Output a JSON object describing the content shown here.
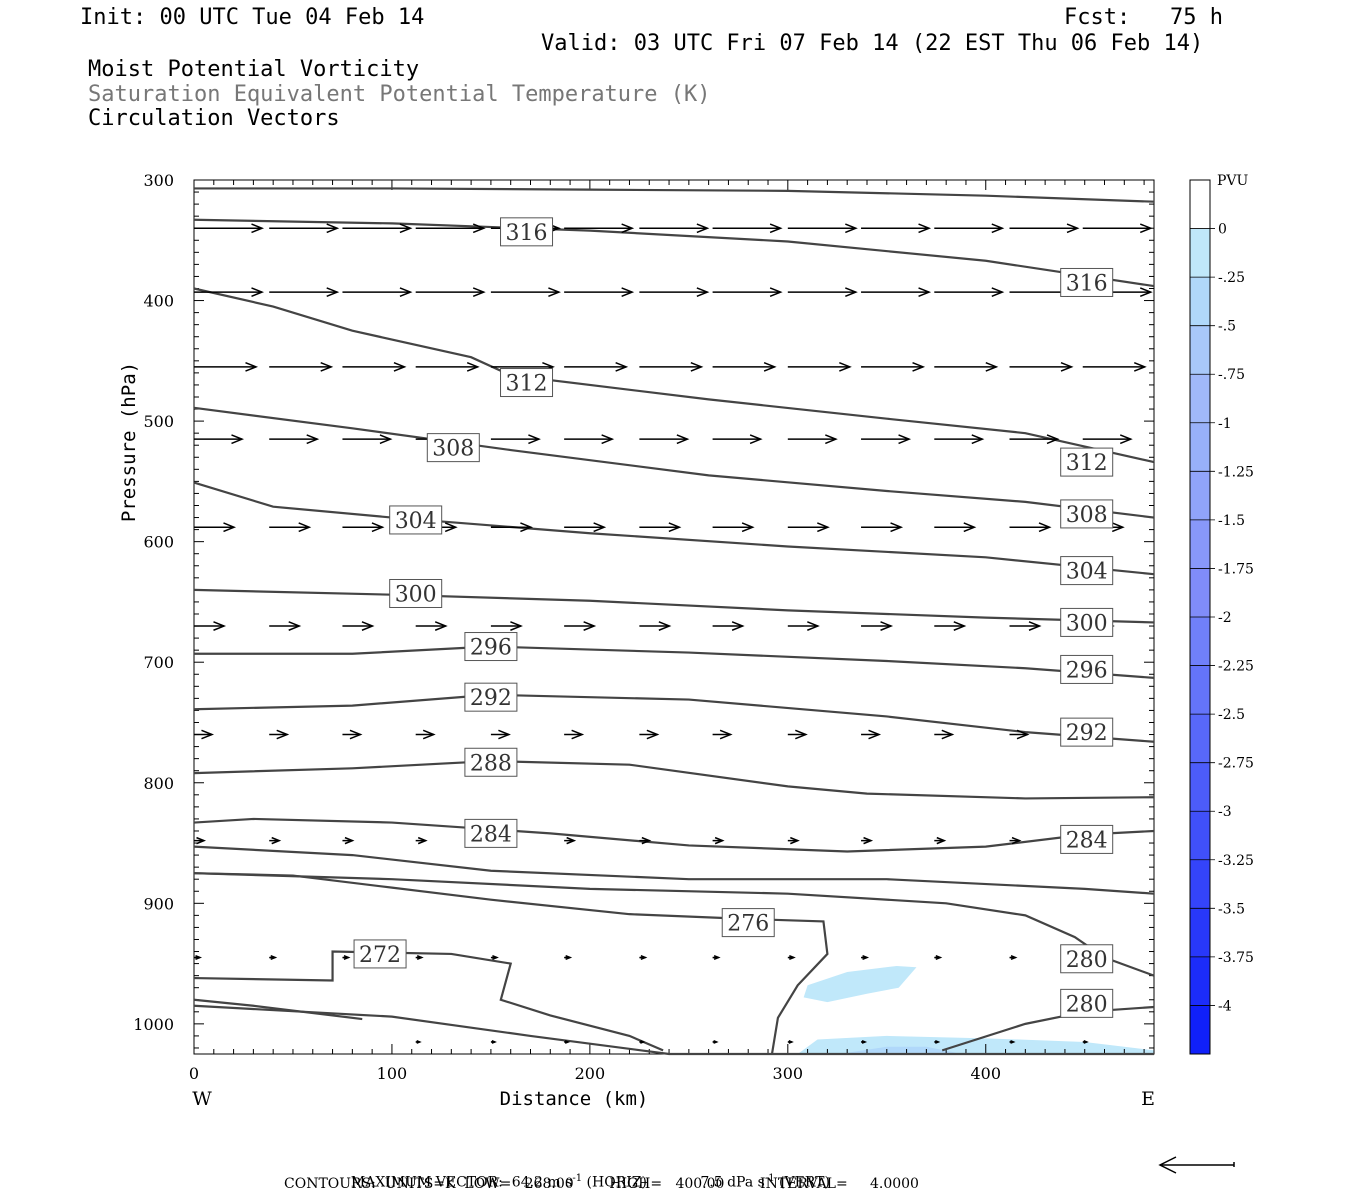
{
  "header": {
    "init": "Init: 00 UTC Tue 04 Feb 14",
    "fcst": "Fcst:   75 h",
    "valid": "Valid: 03 UTC Fri 07 Feb 14 (22 EST Thu 06 Feb 14)",
    "line1": "Moist Potential Vorticity",
    "line2": "Saturation Equivalent Potential Temperature (K)",
    "line3": "Circulation Vectors"
  },
  "footer": {
    "maxvec_label": "MAXIMUM VECTOR:",
    "maxvec_horiz": "64.2 m s",
    "horiz_tag": "(HORIZ)",
    "maxvec_vert": "7.5 dPa s",
    "vert_tag": "(VERT)",
    "exp": "-1",
    "contours": "CONTOURS:  UNITS=K  LOW=   268.00        HIGH=   400.00        INTERVAL=     4.0000"
  },
  "chart_data": {
    "type": "contour",
    "xlabel": "Distance (km)",
    "ylabel": "Pressure (hPa)",
    "xlim": [
      0,
      485
    ],
    "ylim": [
      300,
      1025
    ],
    "x_ticks": [
      0,
      100,
      200,
      300,
      400
    ],
    "y_ticks": [
      300,
      400,
      500,
      600,
      700,
      800,
      900,
      1000
    ],
    "x_left_label": "W",
    "x_right_label": "E",
    "colorbar": {
      "title": "PVU",
      "labels": [
        "0",
        "-.25",
        "-.5",
        "-.75",
        "-1",
        "-1.25",
        "-1.5",
        "-1.75",
        "-2",
        "-2.25",
        "-2.5",
        "-2.75",
        "-3",
        "-3.25",
        "-3.5",
        "-3.75",
        "-4"
      ],
      "colors": [
        "#ffffff",
        "#c0e8fa",
        "#b0d8fa",
        "#a8c8fa",
        "#a0b8fa",
        "#98b0fa",
        "#90a4fa",
        "#8898fa",
        "#808cfa",
        "#7080fa",
        "#6474fa",
        "#5868fa",
        "#4c5cfa",
        "#4050fa",
        "#3444fa",
        "#2838fa",
        "#1c2cfa",
        "#1020fa"
      ]
    },
    "contours": [
      {
        "label": "",
        "points": [
          [
            0,
            307
          ],
          [
            100,
            307
          ],
          [
            200,
            308
          ],
          [
            300,
            309
          ],
          [
            400,
            313
          ],
          [
            485,
            318
          ]
        ]
      },
      {
        "label": "316",
        "points": [
          [
            0,
            333
          ],
          [
            100,
            336
          ],
          [
            200,
            342
          ],
          [
            300,
            351
          ],
          [
            400,
            367
          ],
          [
            485,
            388
          ]
        ],
        "label_at": [
          0,
          [
            168,
            343
          ]
        ],
        "label_at2": [
          [
            451,
            385
          ]
        ]
      },
      {
        "label": "312",
        "points": [
          [
            0,
            390
          ],
          [
            40,
            405
          ],
          [
            80,
            425
          ],
          [
            140,
            447
          ],
          [
            160,
            462
          ],
          [
            260,
            482
          ],
          [
            350,
            498
          ],
          [
            420,
            510
          ],
          [
            485,
            534
          ]
        ],
        "label_at": [
          [
            168,
            468
          ],
          [
            451,
            534
          ]
        ]
      },
      {
        "label": "308",
        "points": [
          [
            0,
            489
          ],
          [
            80,
            506
          ],
          [
            160,
            524
          ],
          [
            260,
            545
          ],
          [
            350,
            558
          ],
          [
            420,
            567
          ],
          [
            485,
            580
          ]
        ],
        "label_at": [
          [
            131,
            522
          ],
          [
            451,
            577
          ]
        ]
      },
      {
        "label": "304",
        "points": [
          [
            0,
            551
          ],
          [
            40,
            571
          ],
          [
            100,
            580
          ],
          [
            200,
            593
          ],
          [
            300,
            604
          ],
          [
            400,
            613
          ],
          [
            485,
            627
          ]
        ],
        "label_at": [
          [
            112,
            582
          ],
          [
            451,
            624
          ]
        ]
      },
      {
        "label": "300",
        "points": [
          [
            0,
            640
          ],
          [
            100,
            644
          ],
          [
            200,
            649
          ],
          [
            300,
            657
          ],
          [
            400,
            663
          ],
          [
            485,
            667
          ]
        ],
        "label_at": [
          [
            112,
            643
          ],
          [
            451,
            667
          ]
        ]
      },
      {
        "label": "296",
        "points": [
          [
            0,
            693
          ],
          [
            80,
            693
          ],
          [
            150,
            687
          ],
          [
            250,
            692
          ],
          [
            350,
            699
          ],
          [
            420,
            705
          ],
          [
            485,
            713
          ]
        ],
        "label_at": [
          [
            150,
            687
          ],
          [
            451,
            706
          ]
        ]
      },
      {
        "label": "292",
        "points": [
          [
            0,
            739
          ],
          [
            80,
            736
          ],
          [
            150,
            727
          ],
          [
            250,
            731
          ],
          [
            350,
            745
          ],
          [
            420,
            758
          ],
          [
            485,
            766
          ]
        ],
        "label_at": [
          [
            150,
            729
          ],
          [
            451,
            758
          ]
        ]
      },
      {
        "label": "288",
        "points": [
          [
            0,
            792
          ],
          [
            80,
            788
          ],
          [
            150,
            782
          ],
          [
            220,
            785
          ],
          [
            300,
            803
          ],
          [
            340,
            809
          ],
          [
            420,
            813
          ],
          [
            485,
            812
          ]
        ],
        "label_at": [
          [
            150,
            783
          ]
        ]
      },
      {
        "label": "284",
        "points": [
          [
            0,
            833
          ],
          [
            30,
            830
          ],
          [
            100,
            833
          ],
          [
            180,
            842
          ],
          [
            250,
            852
          ],
          [
            330,
            857
          ],
          [
            400,
            853
          ],
          [
            450,
            843
          ],
          [
            485,
            840
          ]
        ],
        "label_at": [
          [
            150,
            842
          ],
          [
            451,
            847
          ]
        ]
      },
      {
        "label": "",
        "points": [
          [
            0,
            853
          ],
          [
            80,
            860
          ],
          [
            150,
            873
          ],
          [
            250,
            880
          ],
          [
            350,
            880
          ],
          [
            450,
            888
          ],
          [
            485,
            892
          ]
        ]
      },
      {
        "label": "276",
        "points": [
          [
            0,
            875
          ],
          [
            50,
            877
          ],
          [
            100,
            887
          ],
          [
            150,
            897
          ],
          [
            220,
            909
          ],
          [
            280,
            913
          ],
          [
            318,
            915
          ],
          [
            320,
            942
          ],
          [
            305,
            968
          ],
          [
            295,
            995
          ],
          [
            292,
            1025
          ]
        ],
        "label_at": [
          [
            280,
            916
          ]
        ]
      },
      {
        "label": "280",
        "points": [
          [
            0,
            875
          ],
          [
            100,
            880
          ],
          [
            200,
            888
          ],
          [
            300,
            892
          ],
          [
            380,
            900
          ],
          [
            420,
            910
          ],
          [
            445,
            928
          ],
          [
            460,
            945
          ],
          [
            485,
            960
          ]
        ],
        "label_at": [
          [
            451,
            946
          ]
        ]
      },
      {
        "label": "272",
        "points": [
          [
            0,
            962
          ],
          [
            70,
            964
          ],
          [
            70,
            940
          ],
          [
            130,
            942
          ],
          [
            160,
            950
          ],
          [
            155,
            980
          ],
          [
            180,
            993
          ],
          [
            220,
            1010
          ],
          [
            237,
            1022
          ]
        ],
        "label_at": [
          [
            94,
            942
          ]
        ]
      },
      {
        "label": "280",
        "points": [
          [
            378,
            1022
          ],
          [
            420,
            1000
          ],
          [
            450,
            990
          ],
          [
            485,
            986
          ]
        ],
        "label_at": [
          [
            451,
            983
          ]
        ]
      },
      {
        "label": "",
        "points": [
          [
            0,
            980
          ],
          [
            30,
            985
          ],
          [
            85,
            996
          ]
        ]
      },
      {
        "label": "",
        "points": [
          [
            0,
            985
          ],
          [
            100,
            994
          ],
          [
            170,
            1010
          ],
          [
            240,
            1025
          ],
          [
            485,
            1025
          ]
        ]
      }
    ],
    "shaded": [
      {
        "level": "-0.25",
        "points": [
          [
            310,
            968
          ],
          [
            330,
            957
          ],
          [
            355,
            952
          ],
          [
            365,
            953
          ],
          [
            356,
            970
          ],
          [
            340,
            975
          ],
          [
            320,
            982
          ],
          [
            308,
            978
          ]
        ]
      },
      {
        "level": "-0.25",
        "points": [
          [
            305,
            1025
          ],
          [
            315,
            1013
          ],
          [
            350,
            1010
          ],
          [
            400,
            1012
          ],
          [
            450,
            1015
          ],
          [
            485,
            1022
          ],
          [
            485,
            1025
          ]
        ]
      },
      {
        "level": "-0.5",
        "points": [
          [
            330,
            1024
          ],
          [
            350,
            1019
          ],
          [
            370,
            1019
          ],
          [
            385,
            1024
          ]
        ]
      }
    ],
    "vector_rows": [
      {
        "p": 340,
        "x": [
          0,
          38,
          75,
          112,
          150,
          187,
          225,
          262,
          300,
          337,
          374,
          412,
          449
        ],
        "len": 34
      },
      {
        "p": 393,
        "x": [
          0,
          38,
          75,
          112,
          150,
          187,
          225,
          262,
          300,
          337,
          374,
          412,
          449
        ],
        "len": 34
      },
      {
        "p": 455,
        "x": [
          0,
          38,
          75,
          112,
          150,
          187,
          225,
          262,
          300,
          337,
          374,
          412,
          449
        ],
        "len": 31
      },
      {
        "p": 515,
        "x": [
          0,
          38,
          75,
          112,
          150,
          187,
          225,
          262,
          300,
          337,
          374,
          412,
          449
        ],
        "len": 24
      },
      {
        "p": 588,
        "x": [
          0,
          38,
          75,
          112,
          150,
          187,
          225,
          262,
          300,
          337,
          374,
          412,
          449
        ],
        "len": 20
      },
      {
        "p": 670,
        "x": [
          0,
          38,
          75,
          112,
          150,
          187,
          225,
          262,
          300,
          337,
          374,
          412,
          449
        ],
        "len": 15
      },
      {
        "p": 760,
        "x": [
          0,
          38,
          75,
          112,
          150,
          187,
          225,
          262,
          300,
          337,
          374,
          412,
          449
        ],
        "len": 9
      },
      {
        "p": 848,
        "x": [
          0,
          38,
          75,
          112,
          150,
          187,
          225,
          262,
          300,
          337,
          374,
          412,
          449
        ],
        "len": 5
      },
      {
        "p": 945,
        "x": [
          0,
          38,
          75,
          112,
          150,
          187,
          225,
          262,
          300,
          337,
          374,
          412,
          449
        ],
        "len": 3
      },
      {
        "p": 1015,
        "x": [
          112,
          150,
          187,
          225,
          262,
          300,
          337,
          374,
          412,
          449
        ],
        "len": 2
      }
    ]
  }
}
